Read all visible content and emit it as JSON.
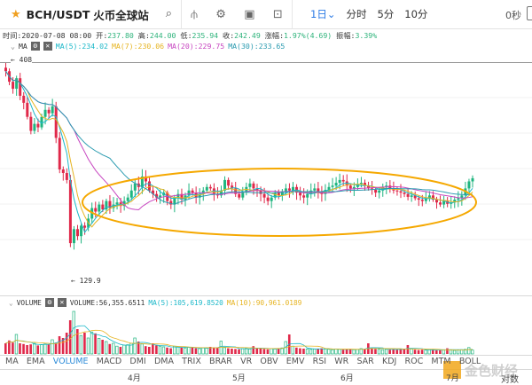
{
  "header": {
    "symbol": "BCH/USDT",
    "exchange": "火币全球站",
    "periods": [
      "1日",
      "分时",
      "5分",
      "10分"
    ],
    "period_active_caret": "⌄",
    "countdown": "0秒"
  },
  "info": {
    "time_label": "时间:",
    "time": "2020-07-08 08:00",
    "open_label": "开:",
    "open": "237.80",
    "high_label": "高:",
    "high": "244.00",
    "low_label": "低:",
    "low": "235.94",
    "close_label": "收:",
    "close": "242.49",
    "change_label": "涨幅:",
    "change": "1.97%(4.69)",
    "amp_label": "振幅:",
    "amp": "3.39%"
  },
  "ma": {
    "label": "MA",
    "ma5": "MA(5):234.02",
    "ma7": "MA(7):230.06",
    "ma20": "MA(20):229.75",
    "ma30": "MA(30):233.65"
  },
  "colors": {
    "up": "#1fb57f",
    "down": "#e0294a",
    "ma5": "#1bb8c9",
    "ma7": "#e6b422",
    "ma20": "#c746c0",
    "ma30": "#2b9bb0",
    "ellipse": "#f5a800"
  },
  "price_max_label": "408",
  "price_min_label": "129.9",
  "price_axis": {
    "top": 408,
    "bottom": 129.9
  },
  "closes": [
    395,
    380,
    370,
    385,
    360,
    350,
    330,
    310,
    320,
    315,
    330,
    340,
    335,
    345,
    300,
    255,
    250,
    240,
    150,
    170,
    160,
    175,
    172,
    185,
    200,
    195,
    205,
    198,
    210,
    200,
    205,
    208,
    203,
    210,
    215,
    225,
    235,
    230,
    245,
    238,
    225,
    220,
    215,
    218,
    222,
    210,
    205,
    215,
    220,
    212,
    218,
    225,
    222,
    215,
    220,
    225,
    230,
    228,
    220,
    218,
    225,
    240,
    232,
    228,
    220,
    215,
    222,
    230,
    235,
    228,
    225,
    220,
    215,
    210,
    215,
    222,
    218,
    224,
    228,
    225,
    230,
    222,
    218,
    215,
    220,
    225,
    228,
    224,
    220,
    226,
    230,
    232,
    236,
    240,
    238,
    232,
    228,
    230,
    234,
    236,
    232,
    228,
    226,
    222,
    225,
    230,
    232,
    228,
    225,
    224,
    222,
    220,
    216,
    218,
    214,
    212,
    210,
    214,
    218,
    212,
    208,
    205,
    210,
    206,
    208,
    212,
    214,
    218,
    228,
    238,
    242.49
  ],
  "volumes": [
    30,
    38,
    32,
    55,
    30,
    28,
    25,
    27,
    30,
    24,
    26,
    28,
    27,
    40,
    32,
    50,
    45,
    60,
    95,
    120,
    70,
    52,
    60,
    45,
    62,
    58,
    44,
    40,
    35,
    28,
    30,
    22,
    20,
    25,
    26,
    30,
    45,
    35,
    28,
    22,
    20,
    30,
    24,
    22,
    20,
    18,
    16,
    22,
    20,
    18,
    17,
    19,
    18,
    16,
    15,
    17,
    16,
    20,
    18,
    17,
    36,
    18,
    16,
    15,
    14,
    13,
    15,
    16,
    14,
    22,
    16,
    15,
    14,
    13,
    15,
    14,
    16,
    17,
    35,
    55,
    22,
    18,
    16,
    15,
    14,
    13,
    14,
    15,
    16,
    14,
    13,
    12,
    14,
    13,
    12,
    13,
    14,
    12,
    13,
    15,
    14,
    30,
    16,
    14,
    13,
    12,
    13,
    12,
    14,
    12,
    13,
    15,
    25,
    14,
    12,
    11,
    12,
    11,
    12,
    11,
    10,
    11,
    12,
    16,
    11,
    10,
    11,
    12,
    13,
    18,
    11
  ],
  "volume": {
    "label": "VOLUME",
    "value": "VOLUME:56,355.6511",
    "ma5": "MA(5):105,619.8520",
    "ma10": "MA(10):90,961.0189"
  },
  "indicators": [
    "MA",
    "EMA",
    "VOLUME",
    "MACD",
    "DMI",
    "DMA",
    "TRIX",
    "BRAR",
    "VR",
    "OBV",
    "EMV",
    "RSI",
    "WR",
    "SAR",
    "KDJ",
    "ROC",
    "MTM",
    "BOLL"
  ],
  "active_indicator": "VOLUME",
  "x_labels": [
    "4月",
    "5月",
    "6月",
    "7月"
  ],
  "log_label": "对数",
  "watermark": "金色财经"
}
